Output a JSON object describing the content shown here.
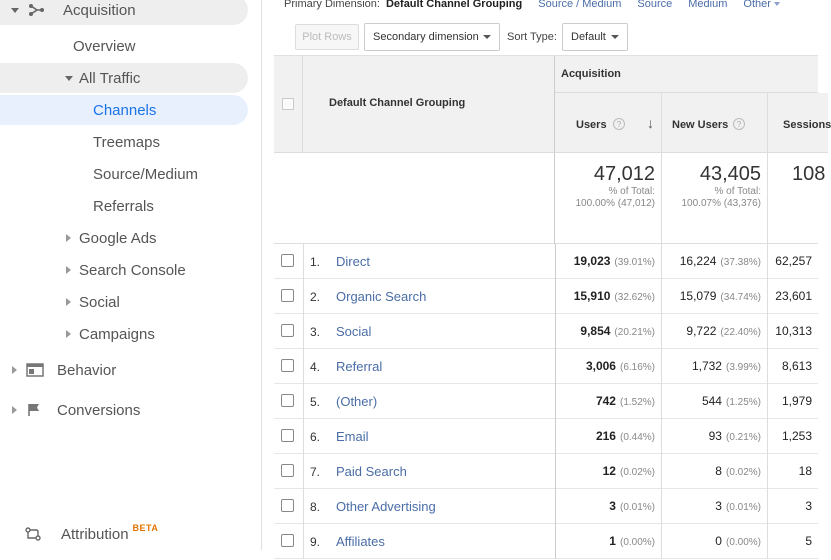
{
  "sidebar": {
    "acquisition": "Acquisition",
    "overview": "Overview",
    "all_traffic": "All Traffic",
    "channels": "Channels",
    "treemaps": "Treemaps",
    "source_medium": "Source/Medium",
    "referrals": "Referrals",
    "google_ads": "Google Ads",
    "search_console": "Search Console",
    "social": "Social",
    "campaigns": "Campaigns",
    "behavior": "Behavior",
    "conversions": "Conversions",
    "attribution": "Attribution",
    "beta": "BETA"
  },
  "primary_dimension": {
    "label": "Primary Dimension:",
    "current": "Default Channel Grouping",
    "options": [
      "Source / Medium",
      "Source",
      "Medium",
      "Other"
    ]
  },
  "toolbar": {
    "plot_rows": "Plot Rows",
    "secondary_dimension": "Secondary dimension",
    "sort_type_label": "Sort Type:",
    "sort_type_value": "Default"
  },
  "table": {
    "dimension_header": "Default Channel Grouping",
    "group_header": "Acquisition",
    "metrics": [
      "Users",
      "New Users",
      "Sessions"
    ],
    "totals": {
      "users": {
        "value": "47,012",
        "pct_label": "% of Total:",
        "pct": "100.00% (47,012)"
      },
      "new_users": {
        "value": "43,405",
        "pct_label": "% of Total:",
        "pct": "100.07% (43,376)"
      },
      "sessions": {
        "value": "108"
      }
    },
    "rows": [
      {
        "idx": "1.",
        "name": "Direct",
        "users": "19,023",
        "users_pct": "(39.01%)",
        "new_users": "16,224",
        "new_users_pct": "(37.38%)",
        "sessions": "62,257"
      },
      {
        "idx": "2.",
        "name": "Organic Search",
        "users": "15,910",
        "users_pct": "(32.62%)",
        "new_users": "15,079",
        "new_users_pct": "(34.74%)",
        "sessions": "23,601"
      },
      {
        "idx": "3.",
        "name": "Social",
        "users": "9,854",
        "users_pct": "(20.21%)",
        "new_users": "9,722",
        "new_users_pct": "(22.40%)",
        "sessions": "10,313"
      },
      {
        "idx": "4.",
        "name": "Referral",
        "users": "3,006",
        "users_pct": "(6.16%)",
        "new_users": "1,732",
        "new_users_pct": "(3.99%)",
        "sessions": "8,613"
      },
      {
        "idx": "5.",
        "name": "(Other)",
        "users": "742",
        "users_pct": "(1.52%)",
        "new_users": "544",
        "new_users_pct": "(1.25%)",
        "sessions": "1,979"
      },
      {
        "idx": "6.",
        "name": "Email",
        "users": "216",
        "users_pct": "(0.44%)",
        "new_users": "93",
        "new_users_pct": "(0.21%)",
        "sessions": "1,253"
      },
      {
        "idx": "7.",
        "name": "Paid Search",
        "users": "12",
        "users_pct": "(0.02%)",
        "new_users": "8",
        "new_users_pct": "(0.02%)",
        "sessions": "18"
      },
      {
        "idx": "8.",
        "name": "Other Advertising",
        "users": "3",
        "users_pct": "(0.01%)",
        "new_users": "3",
        "new_users_pct": "(0.01%)",
        "sessions": "3"
      },
      {
        "idx": "9.",
        "name": "Affiliates",
        "users": "1",
        "users_pct": "(0.00%)",
        "new_users": "0",
        "new_users_pct": "(0.00%)",
        "sessions": "5"
      }
    ]
  },
  "colors": {
    "link": "#4a6da7",
    "active_bg": "#e8f0fe",
    "active_text": "#1a73e8",
    "beta": "#e37400"
  }
}
